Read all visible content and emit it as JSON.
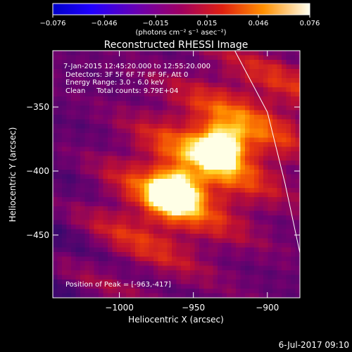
{
  "colorbar": {
    "ticks": [
      "-0.076",
      "-0.046",
      "-0.015",
      "0.015",
      "0.046",
      "0.076"
    ],
    "unit_label": "(photons cm⁻² s⁻¹ asec⁻²)",
    "range": [
      -0.076,
      0.076
    ]
  },
  "chart_data": {
    "type": "heatmap",
    "title": "Reconstructed RHESSI Image",
    "xlabel": "Heliocentric X (arcsec)",
    "ylabel": "Heliocentric Y (arcsec)",
    "xlim": [
      -1045,
      -878
    ],
    "ylim": [
      -499,
      -306
    ],
    "x_ticks": [
      -1000,
      -950,
      -900
    ],
    "x_tick_labels": [
      "−1000",
      "−950",
      "−900"
    ],
    "y_ticks": [
      -350,
      -400,
      -450
    ],
    "y_tick_labels": [
      "−350",
      "−400",
      "−450"
    ],
    "sources": [
      {
        "x": -963,
        "y": -417,
        "peak": 0.076
      },
      {
        "x": -932,
        "y": -381,
        "peak": 0.066
      }
    ],
    "limb": [
      [
        -922,
        -306
      ],
      [
        -900,
        -354
      ],
      [
        -888,
        -410
      ],
      [
        -878,
        -464
      ]
    ],
    "peak_position": [
      -963,
      -417
    ]
  },
  "annotations": {
    "time_range": "7-Jan-2015 12:45:20.000 to 12:55:20.000",
    "detectors": "Detectors: 3F 5F 6F 7F 8F 9F, Att 0",
    "energy": "Energy Range: 3.0 - 6.0 keV",
    "clean": "Clean     Total counts: 9.79E+04",
    "peak": "Position of Peak = [-963,-417]"
  },
  "footer_date": "6-Jul-2017 09:10"
}
